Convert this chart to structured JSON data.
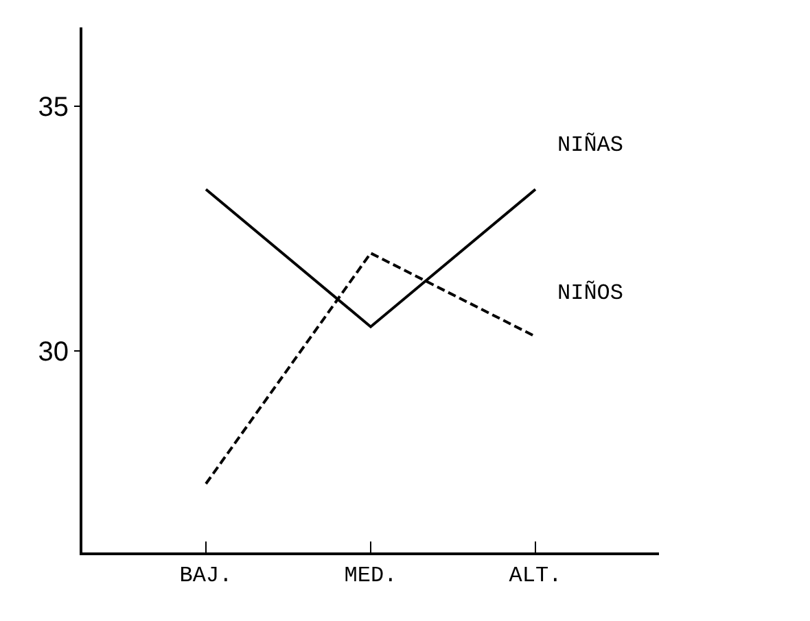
{
  "chart_data": {
    "type": "line",
    "categories": [
      "BAJ.",
      "MED.",
      "ALT."
    ],
    "series": [
      {
        "name": "NIÑAS",
        "color": "#000000",
        "line_style": "solid",
        "values": [
          33.3,
          30.5,
          33.3
        ]
      },
      {
        "name": "NIÑOS",
        "color": "#000000",
        "line_style": "dashed",
        "values": [
          27.3,
          32.0,
          30.3
        ]
      }
    ],
    "ylim": [
      25.9,
      36.6
    ],
    "yticks": [
      30,
      35
    ],
    "grid": false,
    "legend": false,
    "marker": "none"
  }
}
